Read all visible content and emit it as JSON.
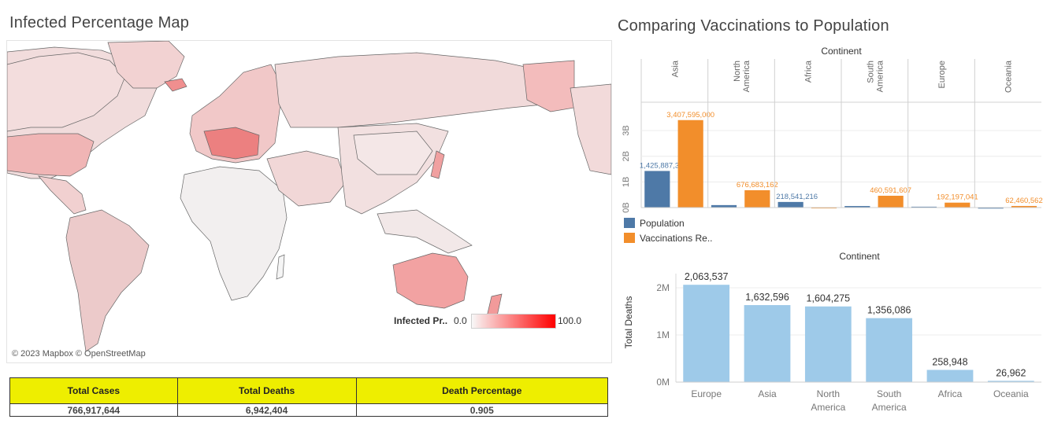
{
  "map": {
    "title": "Infected Percentage Map",
    "legend_label": "Infected Pr..",
    "legend_min": "0.0",
    "legend_max": "100.0",
    "attribution": "© 2023 Mapbox © OpenStreetMap",
    "colors": {
      "low": "#f8f8f8",
      "high": "#ff0000",
      "land": "#ecd6d6",
      "border": "#555555"
    }
  },
  "kpi_table": {
    "headers": [
      "Total Cases",
      "Total Deaths",
      "Death Percentage"
    ],
    "values": [
      "766,917,644",
      "6,942,404",
      "0.905"
    ],
    "header_color": "#eeee00"
  },
  "vaccination": {
    "title": "Comparing Vaccinations to Population",
    "header": "Continent",
    "legend": [
      {
        "label": "Population",
        "color": "#4e79a7"
      },
      {
        "label": "Vaccinations Re..",
        "color": "#f28e2b"
      }
    ]
  },
  "deaths": {
    "header": "Continent",
    "ylabel": "Total Deaths"
  },
  "chart_data": [
    {
      "type": "bar",
      "title": "Comparing Vaccinations to Population",
      "categories": [
        "Asia",
        "North America",
        "Africa",
        "South America",
        "Europe",
        "Oceania"
      ],
      "series": [
        {
          "name": "Population",
          "values": [
            1425887360,
            96000000,
            218541216,
            60000000,
            34000000,
            7000000
          ],
          "labels": [
            "1,425,887,360",
            "",
            "218,541,216",
            "",
            "",
            ""
          ],
          "color": "#4e79a7"
        },
        {
          "name": "Vaccinations Re..",
          "values": [
            3407595000,
            676683162,
            14000000,
            460591607,
            192197041,
            62460562
          ],
          "labels": [
            "3,407,595,000",
            "676,683,162",
            "",
            "460,591,607",
            "192,197,041",
            "62,460,562"
          ],
          "color": "#f28e2b"
        }
      ],
      "ylim": [
        0,
        3400000000
      ],
      "yticks": [
        0,
        1000000000,
        2000000000,
        3000000000
      ],
      "ytick_labels": [
        "0B",
        "1B",
        "2B",
        "3B"
      ],
      "grid": true
    },
    {
      "type": "bar",
      "categories": [
        "Europe",
        "Asia",
        "North America",
        "South America",
        "Africa",
        "Oceania"
      ],
      "category_lines": [
        [
          "Europe"
        ],
        [
          "Asia"
        ],
        [
          "North",
          "America"
        ],
        [
          "South",
          "America"
        ],
        [
          "Africa"
        ],
        [
          "Oceania"
        ]
      ],
      "values": [
        2063537,
        1632596,
        1604275,
        1356086,
        258948,
        26962
      ],
      "labels": [
        "2,063,537",
        "1,632,596",
        "1,604,275",
        "1,356,086",
        "258,948",
        "26,962"
      ],
      "ylabel": "Total Deaths",
      "ylim": [
        0,
        2100000
      ],
      "yticks": [
        0,
        1000000,
        2000000
      ],
      "ytick_labels": [
        "0M",
        "1M",
        "2M"
      ],
      "color": "#9ecae9",
      "grid": true
    }
  ]
}
